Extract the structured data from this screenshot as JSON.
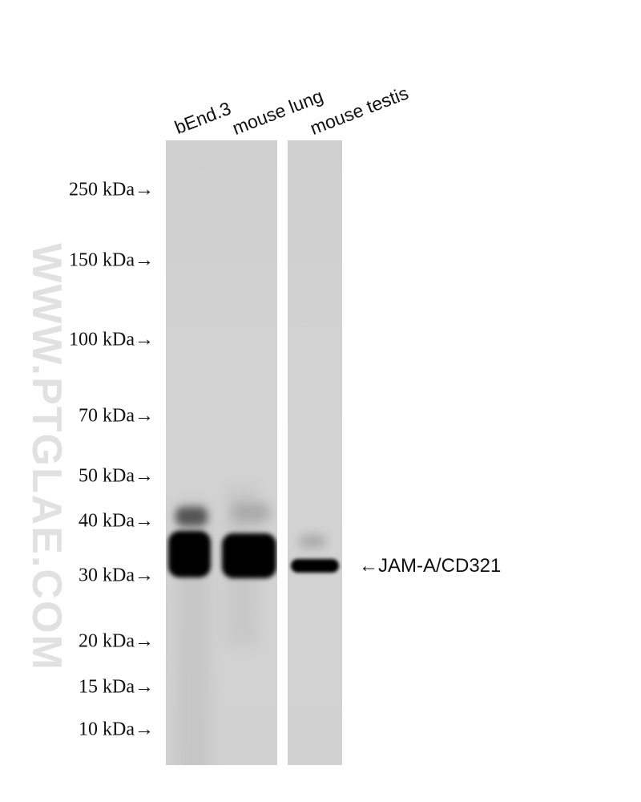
{
  "lanes": [
    "bEnd.3",
    "mouse lung",
    "mouse testis"
  ],
  "markers": [
    "250 kDa→",
    "150 kDa→",
    "100 kDa→",
    "70 kDa→",
    "50 kDa→",
    "40 kDa→",
    "30 kDa→",
    "20 kDa→",
    "15 kDa→",
    "10 kDa→"
  ],
  "target_label": "←JAM-A/CD321",
  "watermark": "WWW.PTGLAE.COM"
}
